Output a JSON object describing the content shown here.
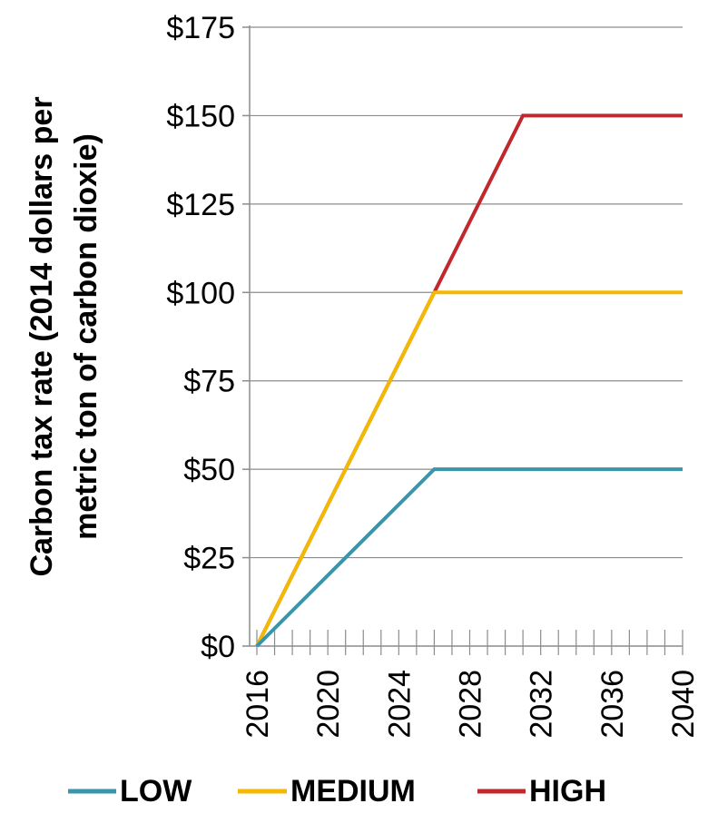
{
  "chart_data": {
    "type": "line",
    "title": "",
    "xlabel": "",
    "ylabel": "Carbon tax rate (2014 dollars per metric ton of carbon dioxie)",
    "ylabel_lines": [
      "Carbon tax rate (2014 dollars per",
      "metric ton of carbon dioxie)"
    ],
    "xlim": [
      2016,
      2040
    ],
    "ylim": [
      0,
      175
    ],
    "x_ticks": [
      2016,
      2020,
      2024,
      2028,
      2032,
      2036,
      2040
    ],
    "y_tick_labels": [
      "$0",
      "$25",
      "$50",
      "$75",
      "$100",
      "$125",
      "$150",
      "$175"
    ],
    "y_ticks": [
      0,
      25,
      50,
      75,
      100,
      125,
      150,
      175
    ],
    "grid": {
      "horizontal": true,
      "vertical": false
    },
    "legend_position": "bottom",
    "series": [
      {
        "name": "LOW",
        "color": "#3a94aa",
        "points": [
          [
            2016,
            0
          ],
          [
            2026,
            50
          ],
          [
            2040,
            50
          ]
        ]
      },
      {
        "name": "MEDIUM",
        "color": "#f5b800",
        "points": [
          [
            2016,
            0
          ],
          [
            2026,
            100
          ],
          [
            2040,
            100
          ]
        ]
      },
      {
        "name": "HIGH",
        "color": "#c0282d",
        "points": [
          [
            2016,
            0
          ],
          [
            2031,
            150
          ],
          [
            2040,
            150
          ]
        ]
      }
    ]
  }
}
